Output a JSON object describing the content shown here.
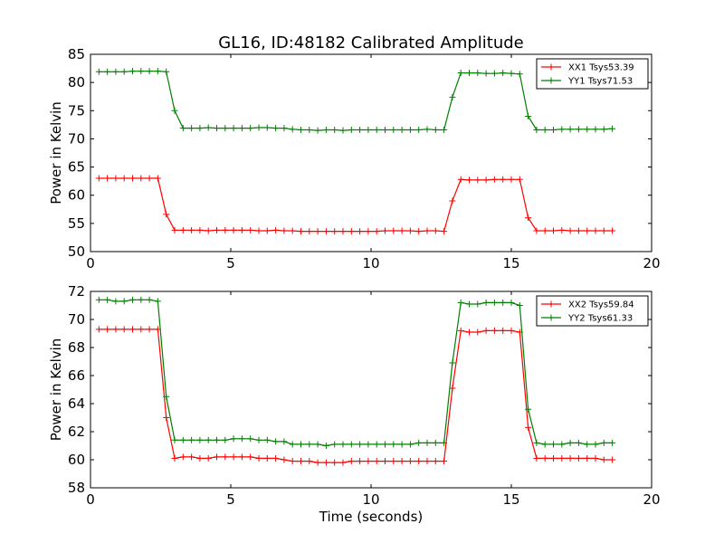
{
  "figure": {
    "title": "GL16, ID:48182 Calibrated Amplitude",
    "xlabel": "Time (seconds)"
  },
  "chart_data": [
    {
      "type": "line",
      "title": "GL16, ID:48182 Calibrated Amplitude",
      "xlabel": "",
      "ylabel": "Power in Kelvin",
      "xlim": [
        0,
        20
      ],
      "ylim": [
        50,
        85
      ],
      "xticks": [
        0,
        5,
        10,
        15,
        20
      ],
      "yticks": [
        50,
        55,
        60,
        65,
        70,
        75,
        80,
        85
      ],
      "grid": false,
      "legend_position": "top-right",
      "x": [
        0.3,
        0.6,
        0.9,
        1.2,
        1.5,
        1.8,
        2.1,
        2.4,
        2.7,
        3.0,
        3.3,
        3.6,
        3.9,
        4.2,
        4.5,
        4.8,
        5.1,
        5.4,
        5.7,
        6.0,
        6.3,
        6.6,
        6.9,
        7.2,
        7.5,
        7.8,
        8.1,
        8.4,
        8.7,
        9.0,
        9.3,
        9.6,
        9.9,
        10.2,
        10.5,
        10.8,
        11.1,
        11.4,
        11.7,
        12.0,
        12.3,
        12.6,
        12.9,
        13.2,
        13.5,
        13.8,
        14.1,
        14.4,
        14.7,
        15.0,
        15.3,
        15.6,
        15.9,
        16.2,
        16.5,
        16.8,
        17.1,
        17.4,
        17.7,
        18.0,
        18.3,
        18.6
      ],
      "series": [
        {
          "name": "XX1 Tsys53.39",
          "color": "#ff0000",
          "values": [
            63.0,
            63.0,
            63.0,
            63.0,
            63.0,
            63.0,
            63.0,
            63.0,
            56.6,
            53.8,
            53.8,
            53.8,
            53.8,
            53.7,
            53.8,
            53.8,
            53.8,
            53.8,
            53.8,
            53.7,
            53.7,
            53.8,
            53.7,
            53.7,
            53.6,
            53.6,
            53.6,
            53.6,
            53.6,
            53.6,
            53.6,
            53.6,
            53.6,
            53.6,
            53.7,
            53.7,
            53.7,
            53.7,
            53.6,
            53.7,
            53.7,
            53.6,
            59.0,
            62.8,
            62.7,
            62.7,
            62.7,
            62.8,
            62.8,
            62.8,
            62.8,
            56.0,
            53.7,
            53.7,
            53.7,
            53.8,
            53.7,
            53.7,
            53.7,
            53.7,
            53.7,
            53.7
          ]
        },
        {
          "name": "YY1 Tsys71.53",
          "color": "#007f00",
          "values": [
            81.9,
            81.9,
            81.9,
            81.9,
            82.0,
            82.0,
            82.0,
            82.0,
            81.9,
            75.0,
            71.9,
            71.9,
            71.9,
            72.0,
            71.9,
            71.9,
            71.9,
            71.9,
            71.9,
            72.0,
            72.0,
            71.9,
            71.9,
            71.7,
            71.6,
            71.6,
            71.5,
            71.6,
            71.6,
            71.5,
            71.6,
            71.6,
            71.6,
            71.6,
            71.6,
            71.6,
            71.6,
            71.6,
            71.6,
            71.7,
            71.6,
            71.6,
            77.4,
            81.7,
            81.7,
            81.7,
            81.6,
            81.6,
            81.7,
            81.6,
            81.5,
            74.0,
            71.6,
            71.6,
            71.6,
            71.7,
            71.7,
            71.7,
            71.7,
            71.7,
            71.7,
            71.8
          ]
        }
      ]
    },
    {
      "type": "line",
      "title": "",
      "xlabel": "Time (seconds)",
      "ylabel": "Power in Kelvin",
      "xlim": [
        0,
        20
      ],
      "ylim": [
        58,
        72
      ],
      "xticks": [
        0,
        5,
        10,
        15,
        20
      ],
      "yticks": [
        58,
        60,
        62,
        64,
        66,
        68,
        70,
        72
      ],
      "grid": false,
      "legend_position": "top-right",
      "x": [
        0.3,
        0.6,
        0.9,
        1.2,
        1.5,
        1.8,
        2.1,
        2.4,
        2.7,
        3.0,
        3.3,
        3.6,
        3.9,
        4.2,
        4.5,
        4.8,
        5.1,
        5.4,
        5.7,
        6.0,
        6.3,
        6.6,
        6.9,
        7.2,
        7.5,
        7.8,
        8.1,
        8.4,
        8.7,
        9.0,
        9.3,
        9.6,
        9.9,
        10.2,
        10.5,
        10.8,
        11.1,
        11.4,
        11.7,
        12.0,
        12.3,
        12.6,
        12.9,
        13.2,
        13.5,
        13.8,
        14.1,
        14.4,
        14.7,
        15.0,
        15.3,
        15.6,
        15.9,
        16.2,
        16.5,
        16.8,
        17.1,
        17.4,
        17.7,
        18.0,
        18.3,
        18.6
      ],
      "series": [
        {
          "name": "XX2 Tsys59.84",
          "color": "#ff0000",
          "values": [
            69.3,
            69.3,
            69.3,
            69.3,
            69.3,
            69.3,
            69.3,
            69.3,
            63.0,
            60.1,
            60.2,
            60.2,
            60.1,
            60.1,
            60.2,
            60.2,
            60.2,
            60.2,
            60.2,
            60.1,
            60.1,
            60.1,
            60.0,
            59.9,
            59.9,
            59.9,
            59.8,
            59.8,
            59.8,
            59.8,
            59.9,
            59.9,
            59.9,
            59.9,
            59.9,
            59.9,
            59.9,
            59.9,
            59.9,
            59.9,
            59.9,
            59.9,
            65.1,
            69.2,
            69.1,
            69.1,
            69.2,
            69.2,
            69.2,
            69.2,
            69.1,
            62.3,
            60.1,
            60.1,
            60.1,
            60.1,
            60.1,
            60.1,
            60.1,
            60.1,
            60.0,
            60.0
          ]
        },
        {
          "name": "YY2 Tsys61.33",
          "color": "#007f00",
          "values": [
            71.4,
            71.4,
            71.3,
            71.3,
            71.4,
            71.4,
            71.4,
            71.3,
            64.5,
            61.4,
            61.4,
            61.4,
            61.4,
            61.4,
            61.4,
            61.4,
            61.5,
            61.5,
            61.5,
            61.4,
            61.4,
            61.3,
            61.3,
            61.1,
            61.1,
            61.1,
            61.1,
            61.0,
            61.1,
            61.1,
            61.1,
            61.1,
            61.1,
            61.1,
            61.1,
            61.1,
            61.1,
            61.1,
            61.2,
            61.2,
            61.2,
            61.2,
            66.9,
            71.2,
            71.1,
            71.1,
            71.2,
            71.2,
            71.2,
            71.2,
            71.0,
            63.6,
            61.2,
            61.1,
            61.1,
            61.1,
            61.2,
            61.2,
            61.1,
            61.1,
            61.2,
            61.2
          ]
        }
      ]
    }
  ]
}
